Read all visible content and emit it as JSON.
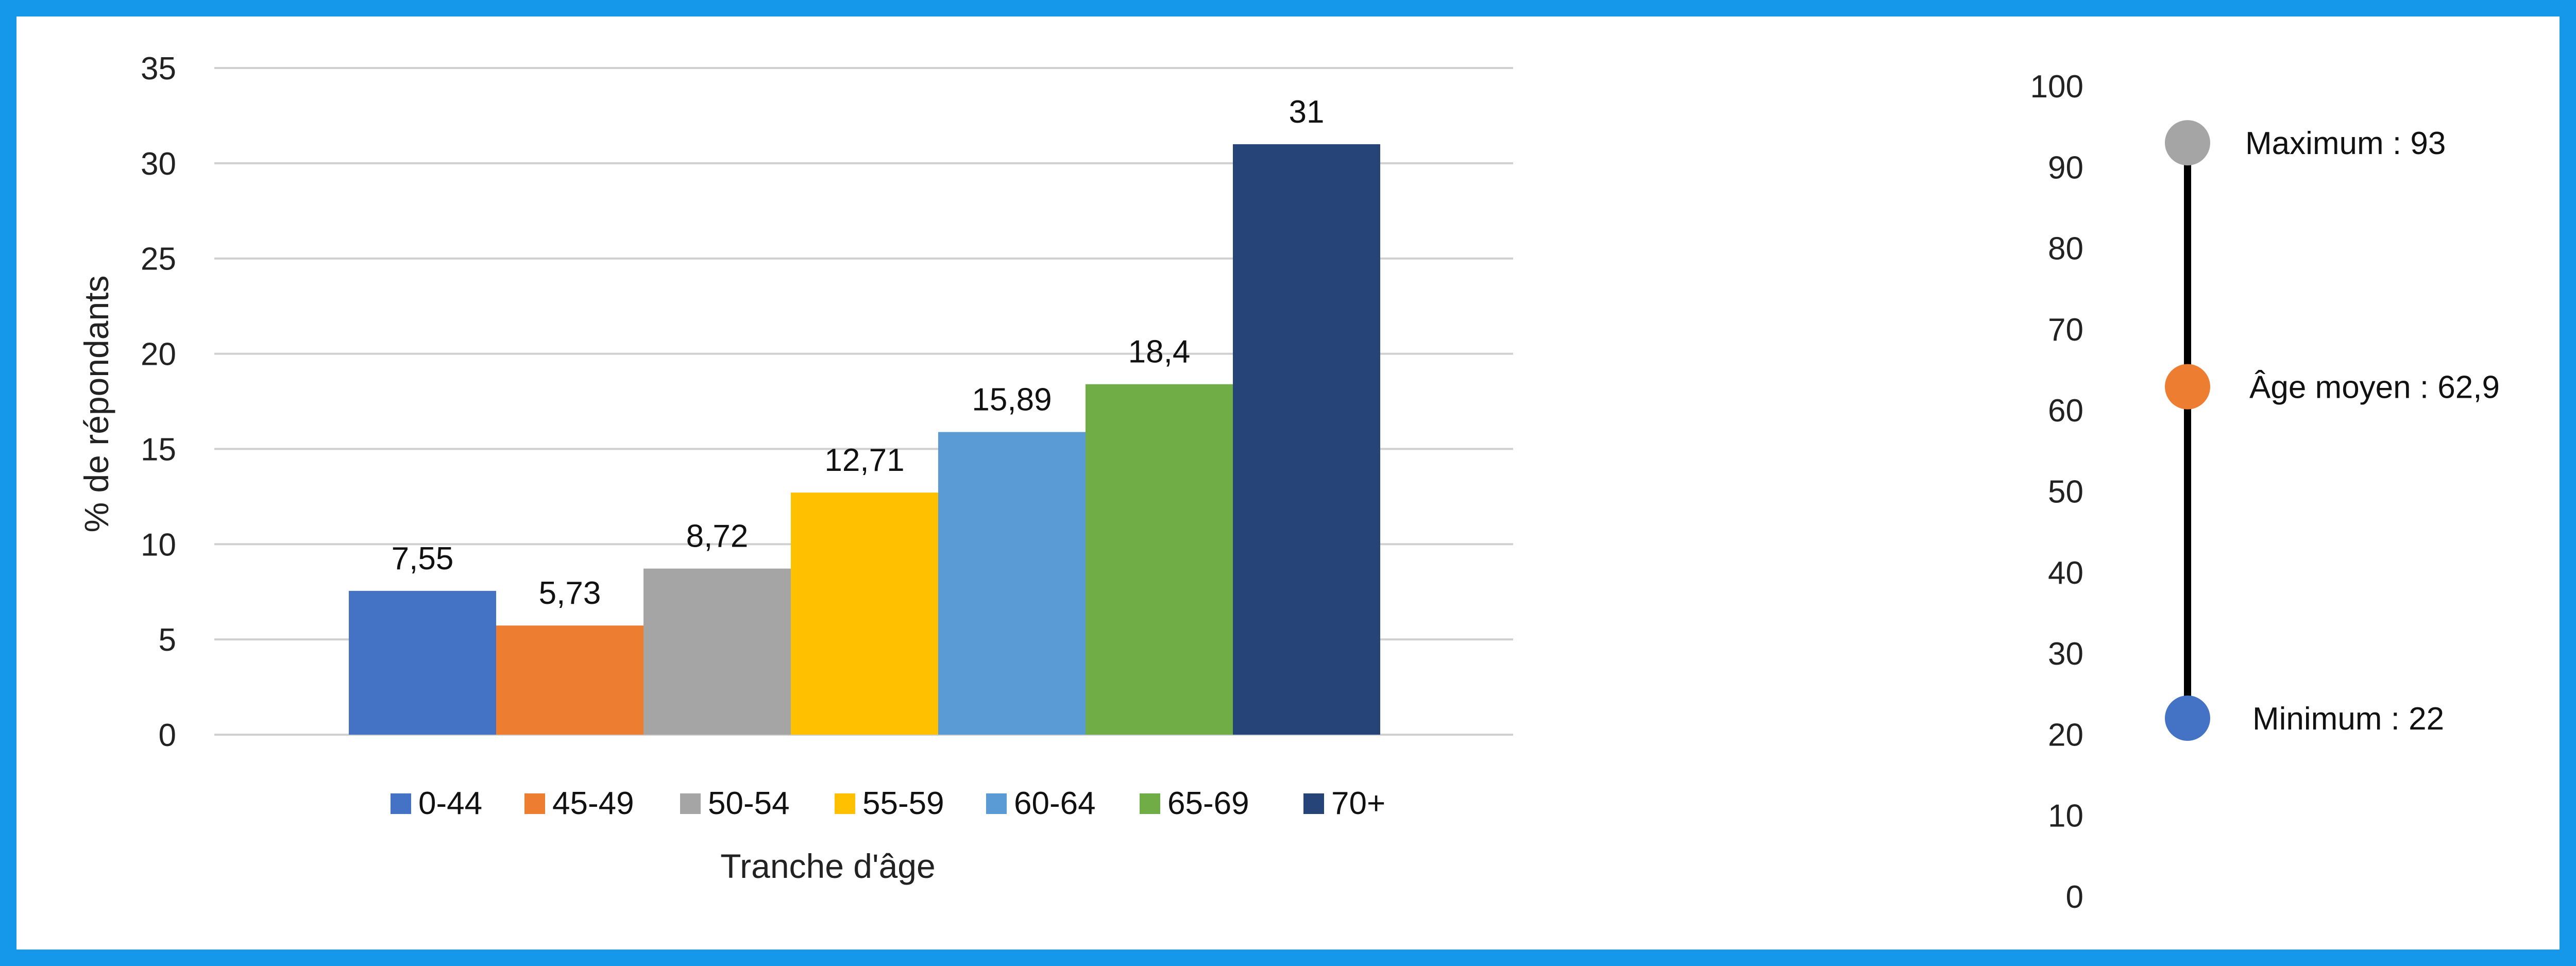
{
  "chart_data": [
    {
      "type": "bar",
      "xlabel": "Tranche d'âge",
      "ylabel": "% de répondants",
      "ylim": [
        0,
        35
      ],
      "yticks": [
        0,
        5,
        10,
        15,
        20,
        25,
        30,
        35
      ],
      "grid": true,
      "legend_position": "bottom",
      "categories": [
        "0-44",
        "45-49",
        "50-54",
        "55-59",
        "60-64",
        "65-69",
        "70+"
      ],
      "values": [
        7.55,
        5.73,
        8.72,
        12.71,
        15.89,
        18.4,
        31
      ],
      "value_labels": [
        "7,55",
        "5,73",
        "8,72",
        "12,71",
        "15,89",
        "18,4",
        "31"
      ],
      "colors": [
        "#4472c4",
        "#ed7d31",
        "#a5a5a5",
        "#ffc000",
        "#5b9bd5",
        "#70ad47",
        "#264478"
      ]
    },
    {
      "type": "scatter",
      "ylim": [
        0,
        100
      ],
      "yticks": [
        0,
        10,
        20,
        30,
        40,
        50,
        60,
        70,
        80,
        90,
        100
      ],
      "points": [
        {
          "label": "Maximum : 93",
          "value": 93,
          "color": "#a5a5a5"
        },
        {
          "label": "Âge moyen : 62,9",
          "value": 62.9,
          "color": "#ed7d31"
        },
        {
          "label": "Minimum : 22",
          "value": 22,
          "color": "#4472c4"
        }
      ],
      "range_line": {
        "from": 22,
        "to": 93,
        "color": "#000000"
      }
    }
  ]
}
